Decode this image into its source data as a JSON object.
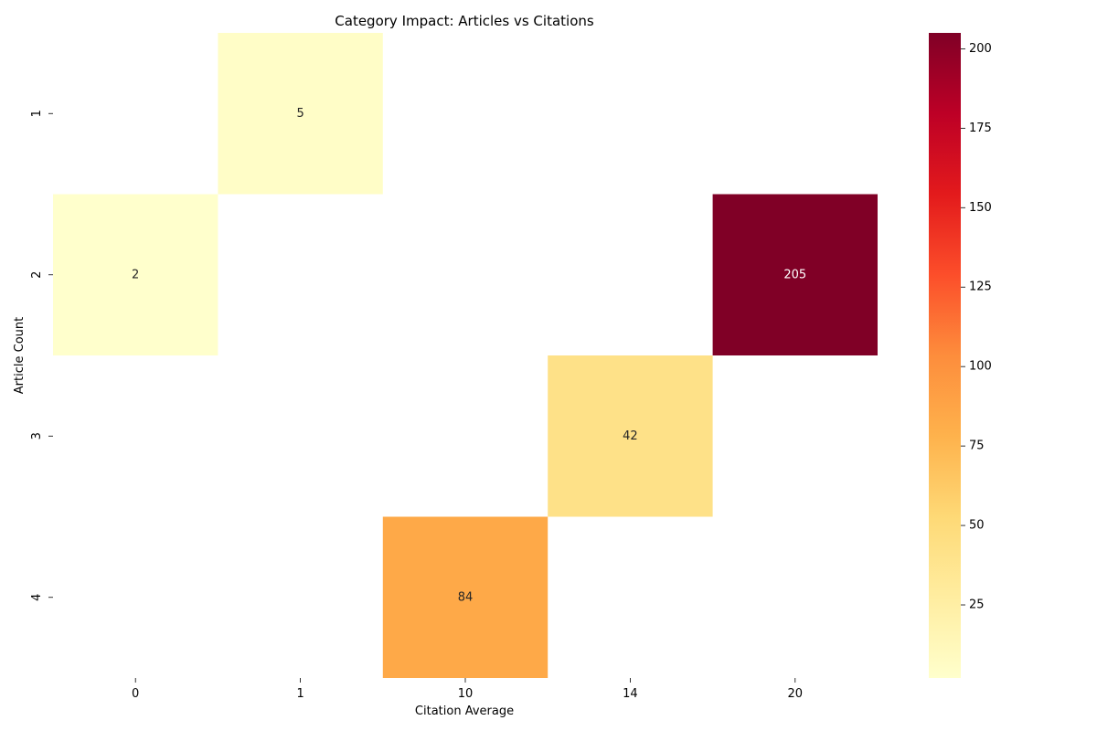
{
  "chart_data": {
    "type": "heatmap",
    "title": "Category Impact: Articles vs Citations",
    "xlabel": "Citation Average",
    "ylabel": "Article Count",
    "x_categories": [
      "0",
      "1",
      "10",
      "14",
      "20"
    ],
    "y_categories": [
      "1",
      "2",
      "3",
      "4"
    ],
    "cells": [
      {
        "x": "1",
        "y": "1",
        "value": 5
      },
      {
        "x": "0",
        "y": "2",
        "value": 2
      },
      {
        "x": "20",
        "y": "2",
        "value": 205
      },
      {
        "x": "14",
        "y": "3",
        "value": 42
      },
      {
        "x": "10",
        "y": "4",
        "value": 84
      }
    ],
    "colorbar": {
      "colormap": "YlOrRd",
      "vmin": 2,
      "vmax": 205,
      "ticks": [
        25,
        50,
        75,
        100,
        125,
        150,
        175,
        200
      ],
      "colors": [
        "#ffffcc",
        "#ffeda0",
        "#fed976",
        "#feb24c",
        "#fd8d3c",
        "#fc4e2a",
        "#e31a1c",
        "#bd0026",
        "#800026"
      ]
    },
    "annotation_dark_color": "#262626",
    "annotation_light_color": "#ffffff",
    "grid": false
  }
}
